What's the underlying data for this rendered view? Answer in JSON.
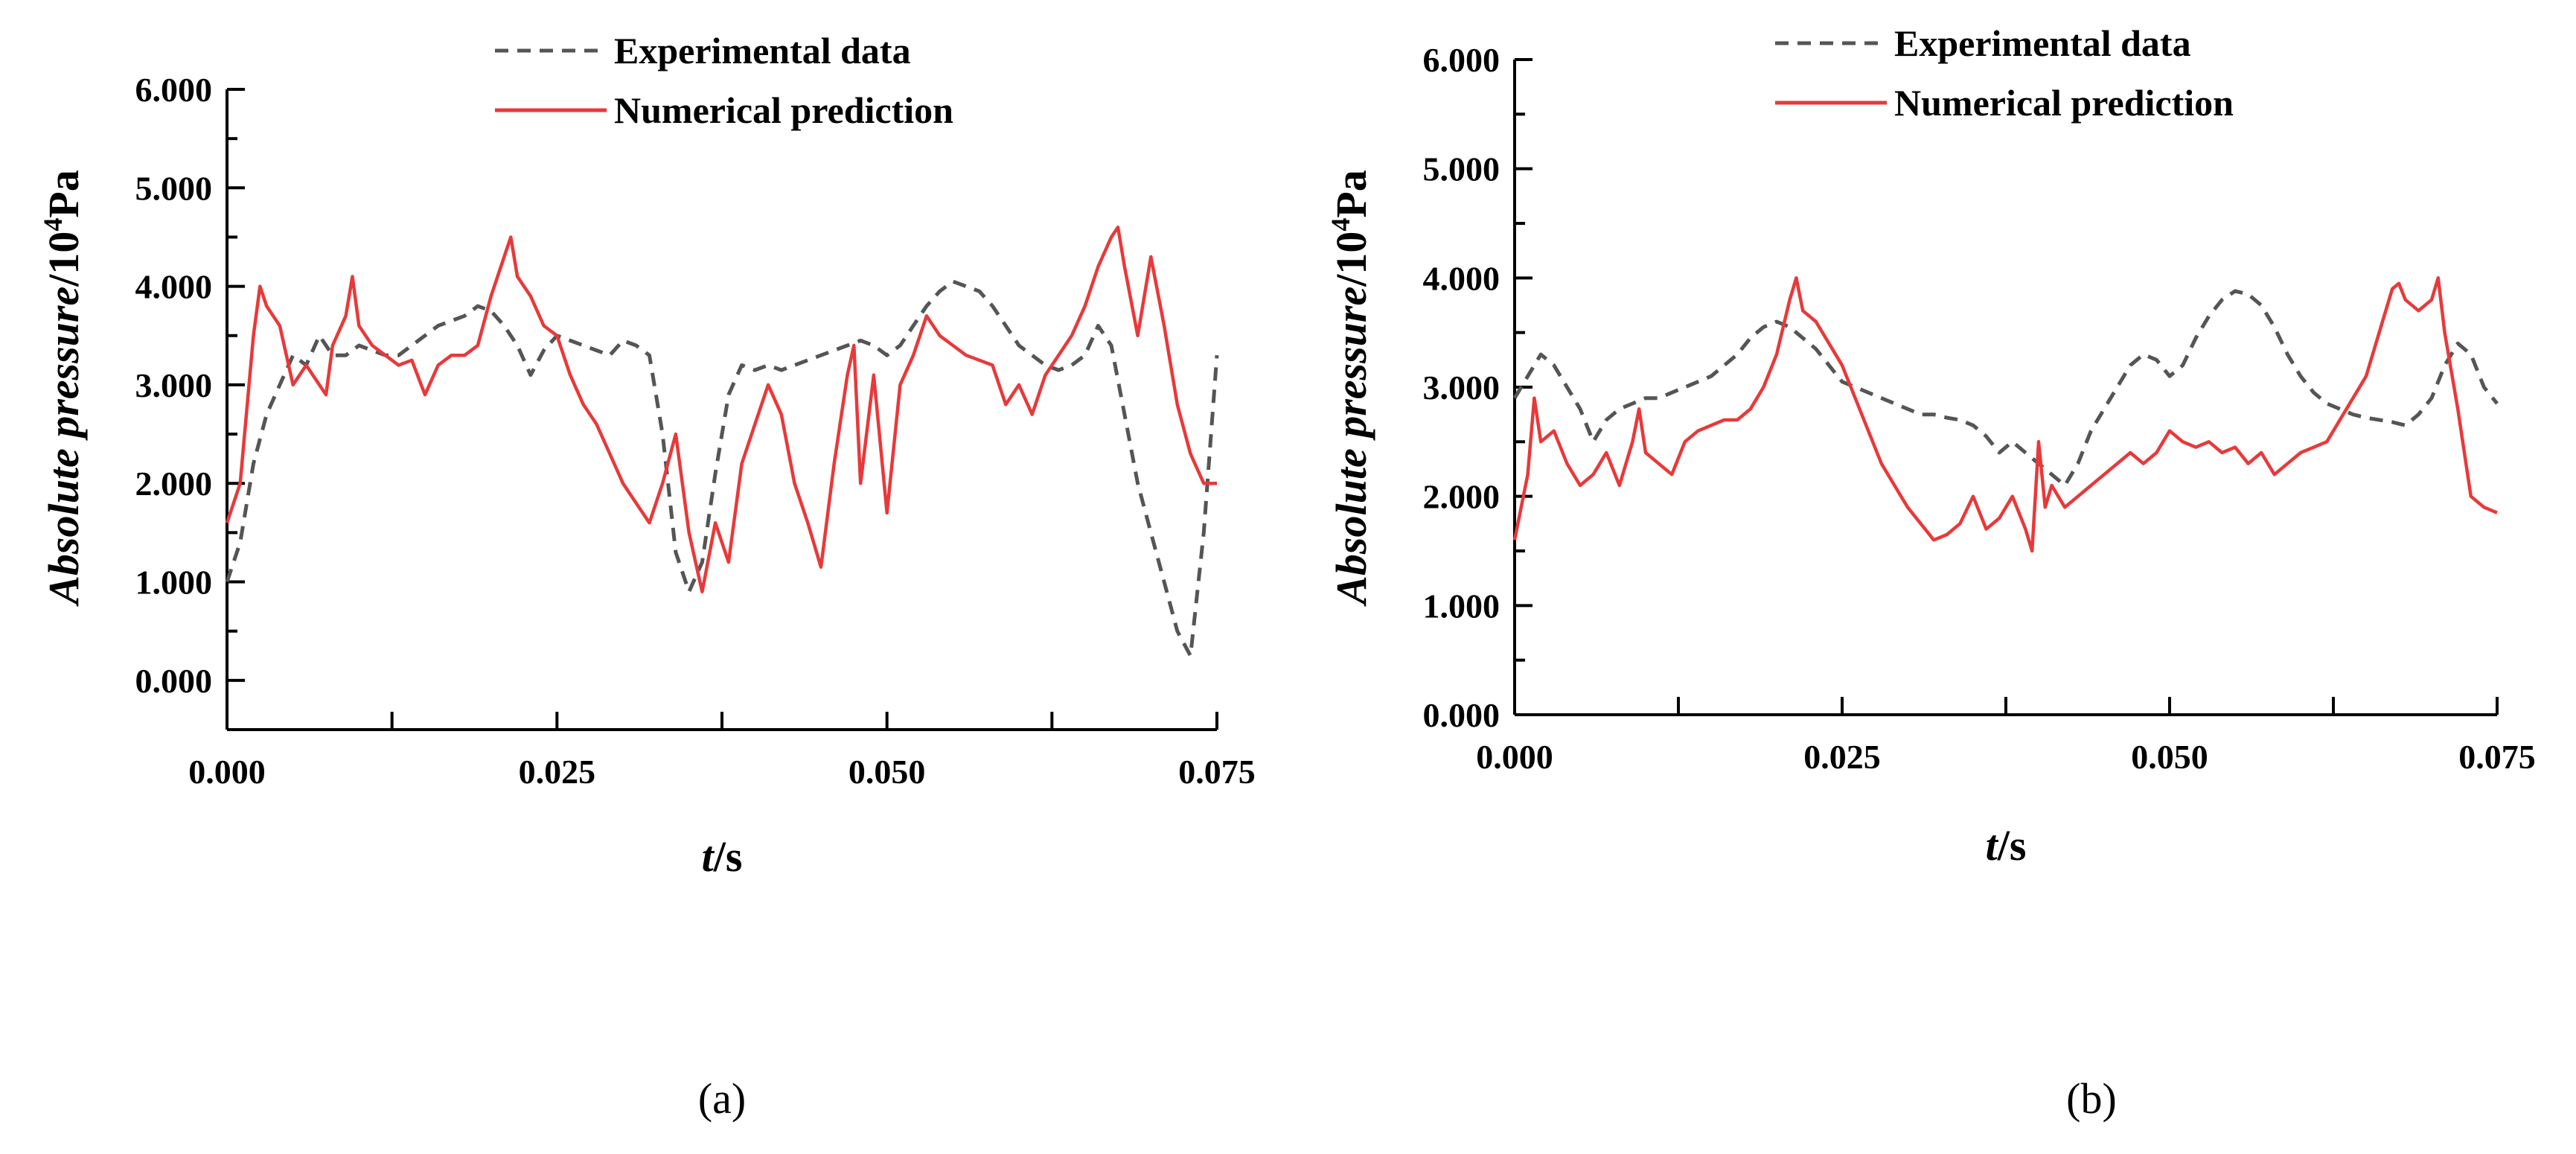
{
  "colors": {
    "experimental": "#555555",
    "numerical": "#e8393a",
    "axis": "#000000"
  },
  "chart_data": [
    {
      "type": "line",
      "panel_label": "(a)",
      "xlabel": {
        "italic": "t",
        "rest": "/s"
      },
      "ylabel": {
        "italic": "Absolute pressure",
        "rest": "/10",
        "sup": "4",
        "tail": "Pa"
      },
      "xlim": [
        0,
        0.075
      ],
      "ylim": [
        -0.5,
        6.0
      ],
      "xticks": [
        "0.000",
        "0.025",
        "0.050",
        "0.075"
      ],
      "yticks": [
        "0.000",
        "1.000",
        "2.000",
        "3.000",
        "4.000",
        "5.000",
        "6.000"
      ],
      "grid": false,
      "legend_position": "top-center",
      "series": [
        {
          "name": "Experimental data",
          "style": "dashed",
          "color": "#555555",
          "x": [
            0,
            0.001,
            0.002,
            0.003,
            0.004,
            0.005,
            0.006,
            0.007,
            0.008,
            0.009,
            0.01,
            0.011,
            0.012,
            0.013,
            0.014,
            0.015,
            0.016,
            0.017,
            0.018,
            0.019,
            0.02,
            0.021,
            0.022,
            0.023,
            0.024,
            0.025,
            0.026,
            0.027,
            0.028,
            0.029,
            0.03,
            0.031,
            0.032,
            0.033,
            0.034,
            0.035,
            0.036,
            0.037,
            0.038,
            0.039,
            0.04,
            0.041,
            0.042,
            0.043,
            0.044,
            0.045,
            0.046,
            0.047,
            0.048,
            0.049,
            0.05,
            0.051,
            0.052,
            0.053,
            0.054,
            0.055,
            0.056,
            0.057,
            0.058,
            0.059,
            0.06,
            0.061,
            0.062,
            0.063,
            0.064,
            0.065,
            0.066,
            0.067,
            0.068,
            0.069,
            0.07,
            0.071,
            0.072,
            0.073,
            0.074,
            0.075
          ],
          "y": [
            1.0,
            1.4,
            2.2,
            2.7,
            3.0,
            3.3,
            3.2,
            3.5,
            3.3,
            3.3,
            3.4,
            3.35,
            3.3,
            3.3,
            3.4,
            3.5,
            3.6,
            3.65,
            3.7,
            3.8,
            3.75,
            3.6,
            3.4,
            3.1,
            3.35,
            3.5,
            3.45,
            3.4,
            3.35,
            3.3,
            3.45,
            3.4,
            3.3,
            2.5,
            1.3,
            0.9,
            1.2,
            2.1,
            2.9,
            3.2,
            3.15,
            3.2,
            3.15,
            3.2,
            3.25,
            3.3,
            3.35,
            3.4,
            3.45,
            3.4,
            3.3,
            3.4,
            3.6,
            3.8,
            3.95,
            4.05,
            4.0,
            3.95,
            3.8,
            3.6,
            3.4,
            3.3,
            3.2,
            3.15,
            3.2,
            3.3,
            3.6,
            3.4,
            2.7,
            2.0,
            1.5,
            1.0,
            0.5,
            0.25,
            1.5,
            3.3
          ]
        },
        {
          "name": "Numerical prediction",
          "style": "solid",
          "color": "#e8393a",
          "x": [
            0,
            0.001,
            0.002,
            0.0025,
            0.003,
            0.004,
            0.005,
            0.006,
            0.007,
            0.0075,
            0.008,
            0.009,
            0.0095,
            0.01,
            0.011,
            0.012,
            0.013,
            0.014,
            0.015,
            0.016,
            0.017,
            0.018,
            0.019,
            0.02,
            0.021,
            0.0215,
            0.022,
            0.023,
            0.024,
            0.025,
            0.026,
            0.027,
            0.028,
            0.029,
            0.03,
            0.031,
            0.032,
            0.033,
            0.034,
            0.035,
            0.036,
            0.037,
            0.038,
            0.039,
            0.04,
            0.041,
            0.042,
            0.043,
            0.044,
            0.045,
            0.046,
            0.047,
            0.0475,
            0.048,
            0.049,
            0.05,
            0.051,
            0.052,
            0.053,
            0.054,
            0.055,
            0.056,
            0.057,
            0.058,
            0.059,
            0.06,
            0.061,
            0.062,
            0.063,
            0.064,
            0.065,
            0.066,
            0.067,
            0.0675,
            0.068,
            0.069,
            0.07,
            0.071,
            0.072,
            0.073,
            0.074,
            0.075
          ],
          "y": [
            1.6,
            2.0,
            3.5,
            4.0,
            3.8,
            3.6,
            3.0,
            3.2,
            3.0,
            2.9,
            3.4,
            3.7,
            4.1,
            3.6,
            3.4,
            3.3,
            3.2,
            3.25,
            2.9,
            3.2,
            3.3,
            3.3,
            3.4,
            3.9,
            4.3,
            4.5,
            4.1,
            3.9,
            3.6,
            3.5,
            3.1,
            2.8,
            2.6,
            2.3,
            2.0,
            1.8,
            1.6,
            2.0,
            2.5,
            1.5,
            0.9,
            1.6,
            1.2,
            2.2,
            2.6,
            3.0,
            2.7,
            2.0,
            1.6,
            1.15,
            2.2,
            3.1,
            3.4,
            2.0,
            3.1,
            1.7,
            3.0,
            3.3,
            3.7,
            3.5,
            3.4,
            3.3,
            3.25,
            3.2,
            2.8,
            3.0,
            2.7,
            3.1,
            3.3,
            3.5,
            3.8,
            4.2,
            4.5,
            4.6,
            4.2,
            3.5,
            4.3,
            3.6,
            2.8,
            2.3,
            2.0,
            2.0
          ]
        }
      ]
    },
    {
      "type": "line",
      "panel_label": "(b)",
      "xlabel": {
        "italic": "t",
        "rest": "/s"
      },
      "ylabel": {
        "italic": "Absolute pressure",
        "rest": "/10",
        "sup": "4",
        "tail": "Pa"
      },
      "xlim": [
        0,
        0.075
      ],
      "ylim": [
        0,
        6.0
      ],
      "xticks": [
        "0.000",
        "0.025",
        "0.050",
        "0.075"
      ],
      "yticks": [
        "0.000",
        "1.000",
        "2.000",
        "3.000",
        "4.000",
        "5.000",
        "6.000"
      ],
      "grid": false,
      "legend_position": "top-center",
      "series": [
        {
          "name": "Experimental data",
          "style": "dashed",
          "color": "#555555",
          "x": [
            0,
            0.001,
            0.002,
            0.003,
            0.004,
            0.005,
            0.006,
            0.007,
            0.008,
            0.009,
            0.01,
            0.011,
            0.012,
            0.013,
            0.014,
            0.015,
            0.016,
            0.017,
            0.018,
            0.019,
            0.02,
            0.021,
            0.022,
            0.023,
            0.024,
            0.025,
            0.026,
            0.027,
            0.028,
            0.029,
            0.03,
            0.031,
            0.032,
            0.033,
            0.034,
            0.035,
            0.036,
            0.037,
            0.038,
            0.039,
            0.04,
            0.041,
            0.042,
            0.043,
            0.044,
            0.045,
            0.046,
            0.047,
            0.048,
            0.049,
            0.05,
            0.051,
            0.052,
            0.053,
            0.054,
            0.055,
            0.056,
            0.057,
            0.058,
            0.059,
            0.06,
            0.061,
            0.062,
            0.063,
            0.064,
            0.065,
            0.066,
            0.067,
            0.068,
            0.069,
            0.07,
            0.071,
            0.072,
            0.073,
            0.074,
            0.075
          ],
          "y": [
            2.9,
            3.1,
            3.3,
            3.2,
            3.0,
            2.8,
            2.5,
            2.7,
            2.8,
            2.85,
            2.9,
            2.9,
            2.95,
            3.0,
            3.05,
            3.1,
            3.2,
            3.3,
            3.45,
            3.55,
            3.6,
            3.55,
            3.45,
            3.35,
            3.2,
            3.05,
            3.0,
            2.95,
            2.9,
            2.85,
            2.8,
            2.75,
            2.75,
            2.72,
            2.7,
            2.65,
            2.55,
            2.4,
            2.5,
            2.4,
            2.3,
            2.2,
            2.1,
            2.3,
            2.6,
            2.8,
            3.0,
            3.2,
            3.3,
            3.25,
            3.1,
            3.2,
            3.45,
            3.65,
            3.8,
            3.88,
            3.85,
            3.75,
            3.55,
            3.3,
            3.1,
            2.95,
            2.85,
            2.8,
            2.75,
            2.72,
            2.7,
            2.68,
            2.65,
            2.75,
            2.9,
            3.2,
            3.4,
            3.3,
            3.0,
            2.85
          ]
        },
        {
          "name": "Numerical prediction",
          "style": "solid",
          "color": "#e8393a",
          "x": [
            0,
            0.001,
            0.0015,
            0.002,
            0.003,
            0.004,
            0.005,
            0.006,
            0.007,
            0.008,
            0.009,
            0.0095,
            0.01,
            0.011,
            0.012,
            0.013,
            0.014,
            0.015,
            0.016,
            0.017,
            0.018,
            0.019,
            0.02,
            0.021,
            0.0215,
            0.022,
            0.023,
            0.024,
            0.025,
            0.026,
            0.027,
            0.028,
            0.029,
            0.03,
            0.031,
            0.032,
            0.033,
            0.034,
            0.035,
            0.036,
            0.037,
            0.038,
            0.039,
            0.0395,
            0.04,
            0.0405,
            0.041,
            0.042,
            0.043,
            0.044,
            0.045,
            0.046,
            0.047,
            0.048,
            0.049,
            0.05,
            0.051,
            0.052,
            0.053,
            0.054,
            0.055,
            0.056,
            0.057,
            0.058,
            0.059,
            0.06,
            0.061,
            0.062,
            0.063,
            0.064,
            0.065,
            0.066,
            0.067,
            0.0675,
            0.068,
            0.069,
            0.07,
            0.0705,
            0.071,
            0.072,
            0.073,
            0.074,
            0.075
          ],
          "y": [
            1.6,
            2.2,
            2.9,
            2.5,
            2.6,
            2.3,
            2.1,
            2.2,
            2.4,
            2.1,
            2.5,
            2.8,
            2.4,
            2.3,
            2.2,
            2.5,
            2.6,
            2.65,
            2.7,
            2.7,
            2.8,
            3.0,
            3.3,
            3.8,
            4.0,
            3.7,
            3.6,
            3.4,
            3.2,
            2.9,
            2.6,
            2.3,
            2.1,
            1.9,
            1.75,
            1.6,
            1.65,
            1.75,
            2.0,
            1.7,
            1.8,
            2.0,
            1.7,
            1.5,
            2.5,
            1.9,
            2.1,
            1.9,
            2.0,
            2.1,
            2.2,
            2.3,
            2.4,
            2.3,
            2.4,
            2.6,
            2.5,
            2.45,
            2.5,
            2.4,
            2.45,
            2.3,
            2.4,
            2.2,
            2.3,
            2.4,
            2.45,
            2.5,
            2.7,
            2.9,
            3.1,
            3.5,
            3.9,
            3.95,
            3.8,
            3.7,
            3.8,
            4.0,
            3.5,
            2.8,
            2.0,
            1.9,
            1.85
          ]
        }
      ]
    }
  ]
}
